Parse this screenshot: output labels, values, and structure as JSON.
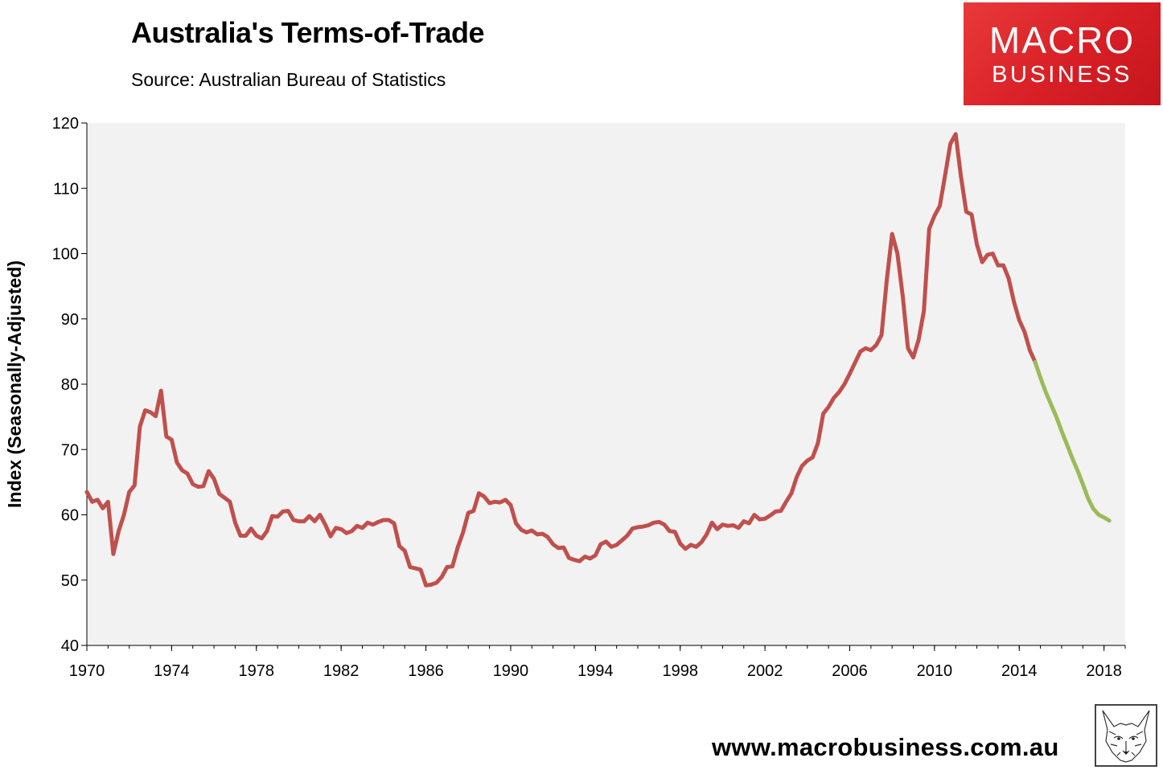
{
  "header": {
    "title": "Australia's Terms-of-Trade",
    "subtitle": "Source: Australian Bureau of Statistics"
  },
  "logo": {
    "line1": "MACRO",
    "line2": "BUSINESS",
    "color": "#d81f26"
  },
  "footer": {
    "url": "www.macrobusiness.com.au",
    "mascot_icon": "fox-sketch-icon"
  },
  "chart_data": {
    "type": "line",
    "title": "Australia's Terms-of-Trade",
    "xlabel": "",
    "ylabel": "Index (Seasonally-Adjusted)",
    "xlim": [
      1970,
      2019
    ],
    "ylim": [
      40,
      120
    ],
    "yticks": [
      40,
      50,
      60,
      70,
      80,
      90,
      100,
      110,
      120
    ],
    "xticks": [
      1970,
      1974,
      1978,
      1982,
      1986,
      1990,
      1994,
      1998,
      2002,
      2006,
      2010,
      2014,
      2018
    ],
    "grid": false,
    "plot_background": "#f2f2f2",
    "series": [
      {
        "color": "#c0504d",
        "points": [
          [
            1970.0,
            63.5
          ],
          [
            1970.25,
            62.0
          ],
          [
            1970.5,
            62.3
          ],
          [
            1970.75,
            61.0
          ],
          [
            1971.0,
            62.0
          ],
          [
            1971.25,
            54.0
          ],
          [
            1971.5,
            57.5
          ],
          [
            1971.75,
            60.0
          ],
          [
            1972.0,
            63.5
          ],
          [
            1972.25,
            64.5
          ],
          [
            1972.5,
            73.5
          ],
          [
            1972.75,
            76.0
          ],
          [
            1973.0,
            75.7
          ],
          [
            1973.25,
            75.1
          ],
          [
            1973.5,
            79.0
          ],
          [
            1973.75,
            72.0
          ],
          [
            1974.0,
            71.5
          ],
          [
            1974.25,
            68.0
          ],
          [
            1974.5,
            66.8
          ],
          [
            1974.75,
            66.3
          ],
          [
            1975.0,
            64.7
          ],
          [
            1975.25,
            64.3
          ],
          [
            1975.5,
            64.4
          ],
          [
            1975.75,
            66.7
          ],
          [
            1976.0,
            65.5
          ],
          [
            1976.25,
            63.2
          ],
          [
            1976.5,
            62.6
          ],
          [
            1976.75,
            62.0
          ],
          [
            1977.0,
            58.8
          ],
          [
            1977.25,
            56.8
          ],
          [
            1977.5,
            56.8
          ],
          [
            1977.75,
            57.9
          ],
          [
            1978.0,
            56.8
          ],
          [
            1978.25,
            56.4
          ],
          [
            1978.5,
            57.5
          ],
          [
            1978.75,
            59.8
          ],
          [
            1979.0,
            59.7
          ],
          [
            1979.25,
            60.5
          ],
          [
            1979.5,
            60.6
          ],
          [
            1979.75,
            59.2
          ],
          [
            1980.0,
            59.0
          ],
          [
            1980.25,
            59.0
          ],
          [
            1980.5,
            59.8
          ],
          [
            1980.75,
            59.0
          ],
          [
            1981.0,
            60.0
          ],
          [
            1981.25,
            58.5
          ],
          [
            1981.5,
            56.7
          ],
          [
            1981.75,
            58.0
          ],
          [
            1982.0,
            57.8
          ],
          [
            1982.25,
            57.2
          ],
          [
            1982.5,
            57.5
          ],
          [
            1982.75,
            58.3
          ],
          [
            1983.0,
            58.0
          ],
          [
            1983.25,
            58.8
          ],
          [
            1983.5,
            58.5
          ],
          [
            1983.75,
            58.9
          ],
          [
            1984.0,
            59.2
          ],
          [
            1984.25,
            59.2
          ],
          [
            1984.5,
            58.7
          ],
          [
            1984.75,
            55.2
          ],
          [
            1985.0,
            54.5
          ],
          [
            1985.25,
            52.0
          ],
          [
            1985.5,
            51.8
          ],
          [
            1985.75,
            51.6
          ],
          [
            1986.0,
            49.2
          ],
          [
            1986.25,
            49.3
          ],
          [
            1986.5,
            49.6
          ],
          [
            1986.75,
            50.5
          ],
          [
            1987.0,
            52.0
          ],
          [
            1987.25,
            52.1
          ],
          [
            1987.5,
            55.0
          ],
          [
            1987.75,
            57.3
          ],
          [
            1988.0,
            60.3
          ],
          [
            1988.25,
            60.6
          ],
          [
            1988.5,
            63.3
          ],
          [
            1988.75,
            62.8
          ],
          [
            1989.0,
            61.8
          ],
          [
            1989.25,
            62.0
          ],
          [
            1989.5,
            61.9
          ],
          [
            1989.75,
            62.3
          ],
          [
            1990.0,
            61.5
          ],
          [
            1990.25,
            58.7
          ],
          [
            1990.5,
            57.7
          ],
          [
            1990.75,
            57.3
          ],
          [
            1991.0,
            57.6
          ],
          [
            1991.25,
            57.0
          ],
          [
            1991.5,
            57.1
          ],
          [
            1991.75,
            56.6
          ],
          [
            1992.0,
            55.5
          ],
          [
            1992.25,
            54.9
          ],
          [
            1992.5,
            55.0
          ],
          [
            1992.75,
            53.4
          ],
          [
            1993.0,
            53.1
          ],
          [
            1993.25,
            52.9
          ],
          [
            1993.5,
            53.6
          ],
          [
            1993.75,
            53.3
          ],
          [
            1994.0,
            53.8
          ],
          [
            1994.25,
            55.5
          ],
          [
            1994.5,
            55.9
          ],
          [
            1994.75,
            55.1
          ],
          [
            1995.0,
            55.4
          ],
          [
            1995.25,
            56.1
          ],
          [
            1995.5,
            56.8
          ],
          [
            1995.75,
            57.9
          ],
          [
            1996.0,
            58.1
          ],
          [
            1996.25,
            58.2
          ],
          [
            1996.5,
            58.4
          ],
          [
            1996.75,
            58.8
          ],
          [
            1997.0,
            58.9
          ],
          [
            1997.25,
            58.5
          ],
          [
            1997.5,
            57.5
          ],
          [
            1997.75,
            57.4
          ],
          [
            1998.0,
            55.6
          ],
          [
            1998.25,
            54.8
          ],
          [
            1998.5,
            55.4
          ],
          [
            1998.75,
            55.1
          ],
          [
            1999.0,
            55.8
          ],
          [
            1999.25,
            57.0
          ],
          [
            1999.5,
            58.8
          ],
          [
            1999.75,
            57.8
          ],
          [
            2000.0,
            58.5
          ],
          [
            2000.25,
            58.3
          ],
          [
            2000.5,
            58.4
          ],
          [
            2000.75,
            58.0
          ],
          [
            2001.0,
            59.0
          ],
          [
            2001.25,
            58.7
          ],
          [
            2001.5,
            60.0
          ],
          [
            2001.75,
            59.3
          ],
          [
            2002.0,
            59.4
          ],
          [
            2002.25,
            59.9
          ],
          [
            2002.5,
            60.5
          ],
          [
            2002.75,
            60.6
          ],
          [
            2003.0,
            62.0
          ],
          [
            2003.25,
            63.3
          ],
          [
            2003.5,
            65.8
          ],
          [
            2003.75,
            67.5
          ],
          [
            2004.0,
            68.3
          ],
          [
            2004.25,
            68.8
          ],
          [
            2004.5,
            71.0
          ],
          [
            2004.75,
            75.5
          ],
          [
            2005.0,
            76.5
          ],
          [
            2005.25,
            77.9
          ],
          [
            2005.5,
            78.8
          ],
          [
            2005.75,
            80.0
          ],
          [
            2006.0,
            81.6
          ],
          [
            2006.25,
            83.3
          ],
          [
            2006.5,
            85.0
          ],
          [
            2006.75,
            85.5
          ],
          [
            2007.0,
            85.2
          ],
          [
            2007.25,
            86.0
          ],
          [
            2007.5,
            87.5
          ],
          [
            2007.75,
            96.0
          ],
          [
            2008.0,
            103.0
          ],
          [
            2008.25,
            100.0
          ],
          [
            2008.5,
            93.5
          ],
          [
            2008.75,
            85.5
          ],
          [
            2009.0,
            84.1
          ],
          [
            2009.25,
            86.8
          ],
          [
            2009.5,
            91.2
          ],
          [
            2009.75,
            103.8
          ],
          [
            2010.0,
            105.8
          ],
          [
            2010.25,
            107.3
          ],
          [
            2010.5,
            112.0
          ],
          [
            2010.75,
            116.8
          ],
          [
            2011.0,
            118.3
          ],
          [
            2011.25,
            111.8
          ],
          [
            2011.5,
            106.4
          ],
          [
            2011.75,
            106.0
          ],
          [
            2012.0,
            101.4
          ],
          [
            2012.25,
            98.7
          ],
          [
            2012.5,
            99.8
          ],
          [
            2012.75,
            100.0
          ],
          [
            2013.0,
            98.2
          ],
          [
            2013.25,
            98.2
          ],
          [
            2013.5,
            96.2
          ],
          [
            2013.75,
            92.6
          ],
          [
            2014.0,
            89.8
          ],
          [
            2014.25,
            88.0
          ],
          [
            2014.5,
            85.2
          ],
          [
            2014.75,
            83.4
          ]
        ]
      },
      {
        "color": "#9bbb59",
        "points": [
          [
            2014.75,
            83.4
          ],
          [
            2015.0,
            81.0
          ],
          [
            2015.25,
            78.8
          ],
          [
            2015.5,
            76.9
          ],
          [
            2015.75,
            75.0
          ],
          [
            2016.0,
            72.8
          ],
          [
            2016.25,
            70.8
          ],
          [
            2016.5,
            68.7
          ],
          [
            2016.75,
            66.8
          ],
          [
            2017.0,
            64.7
          ],
          [
            2017.25,
            62.5
          ],
          [
            2017.5,
            60.9
          ],
          [
            2017.75,
            60.0
          ],
          [
            2018.0,
            59.6
          ],
          [
            2018.25,
            59.1
          ]
        ]
      }
    ]
  }
}
